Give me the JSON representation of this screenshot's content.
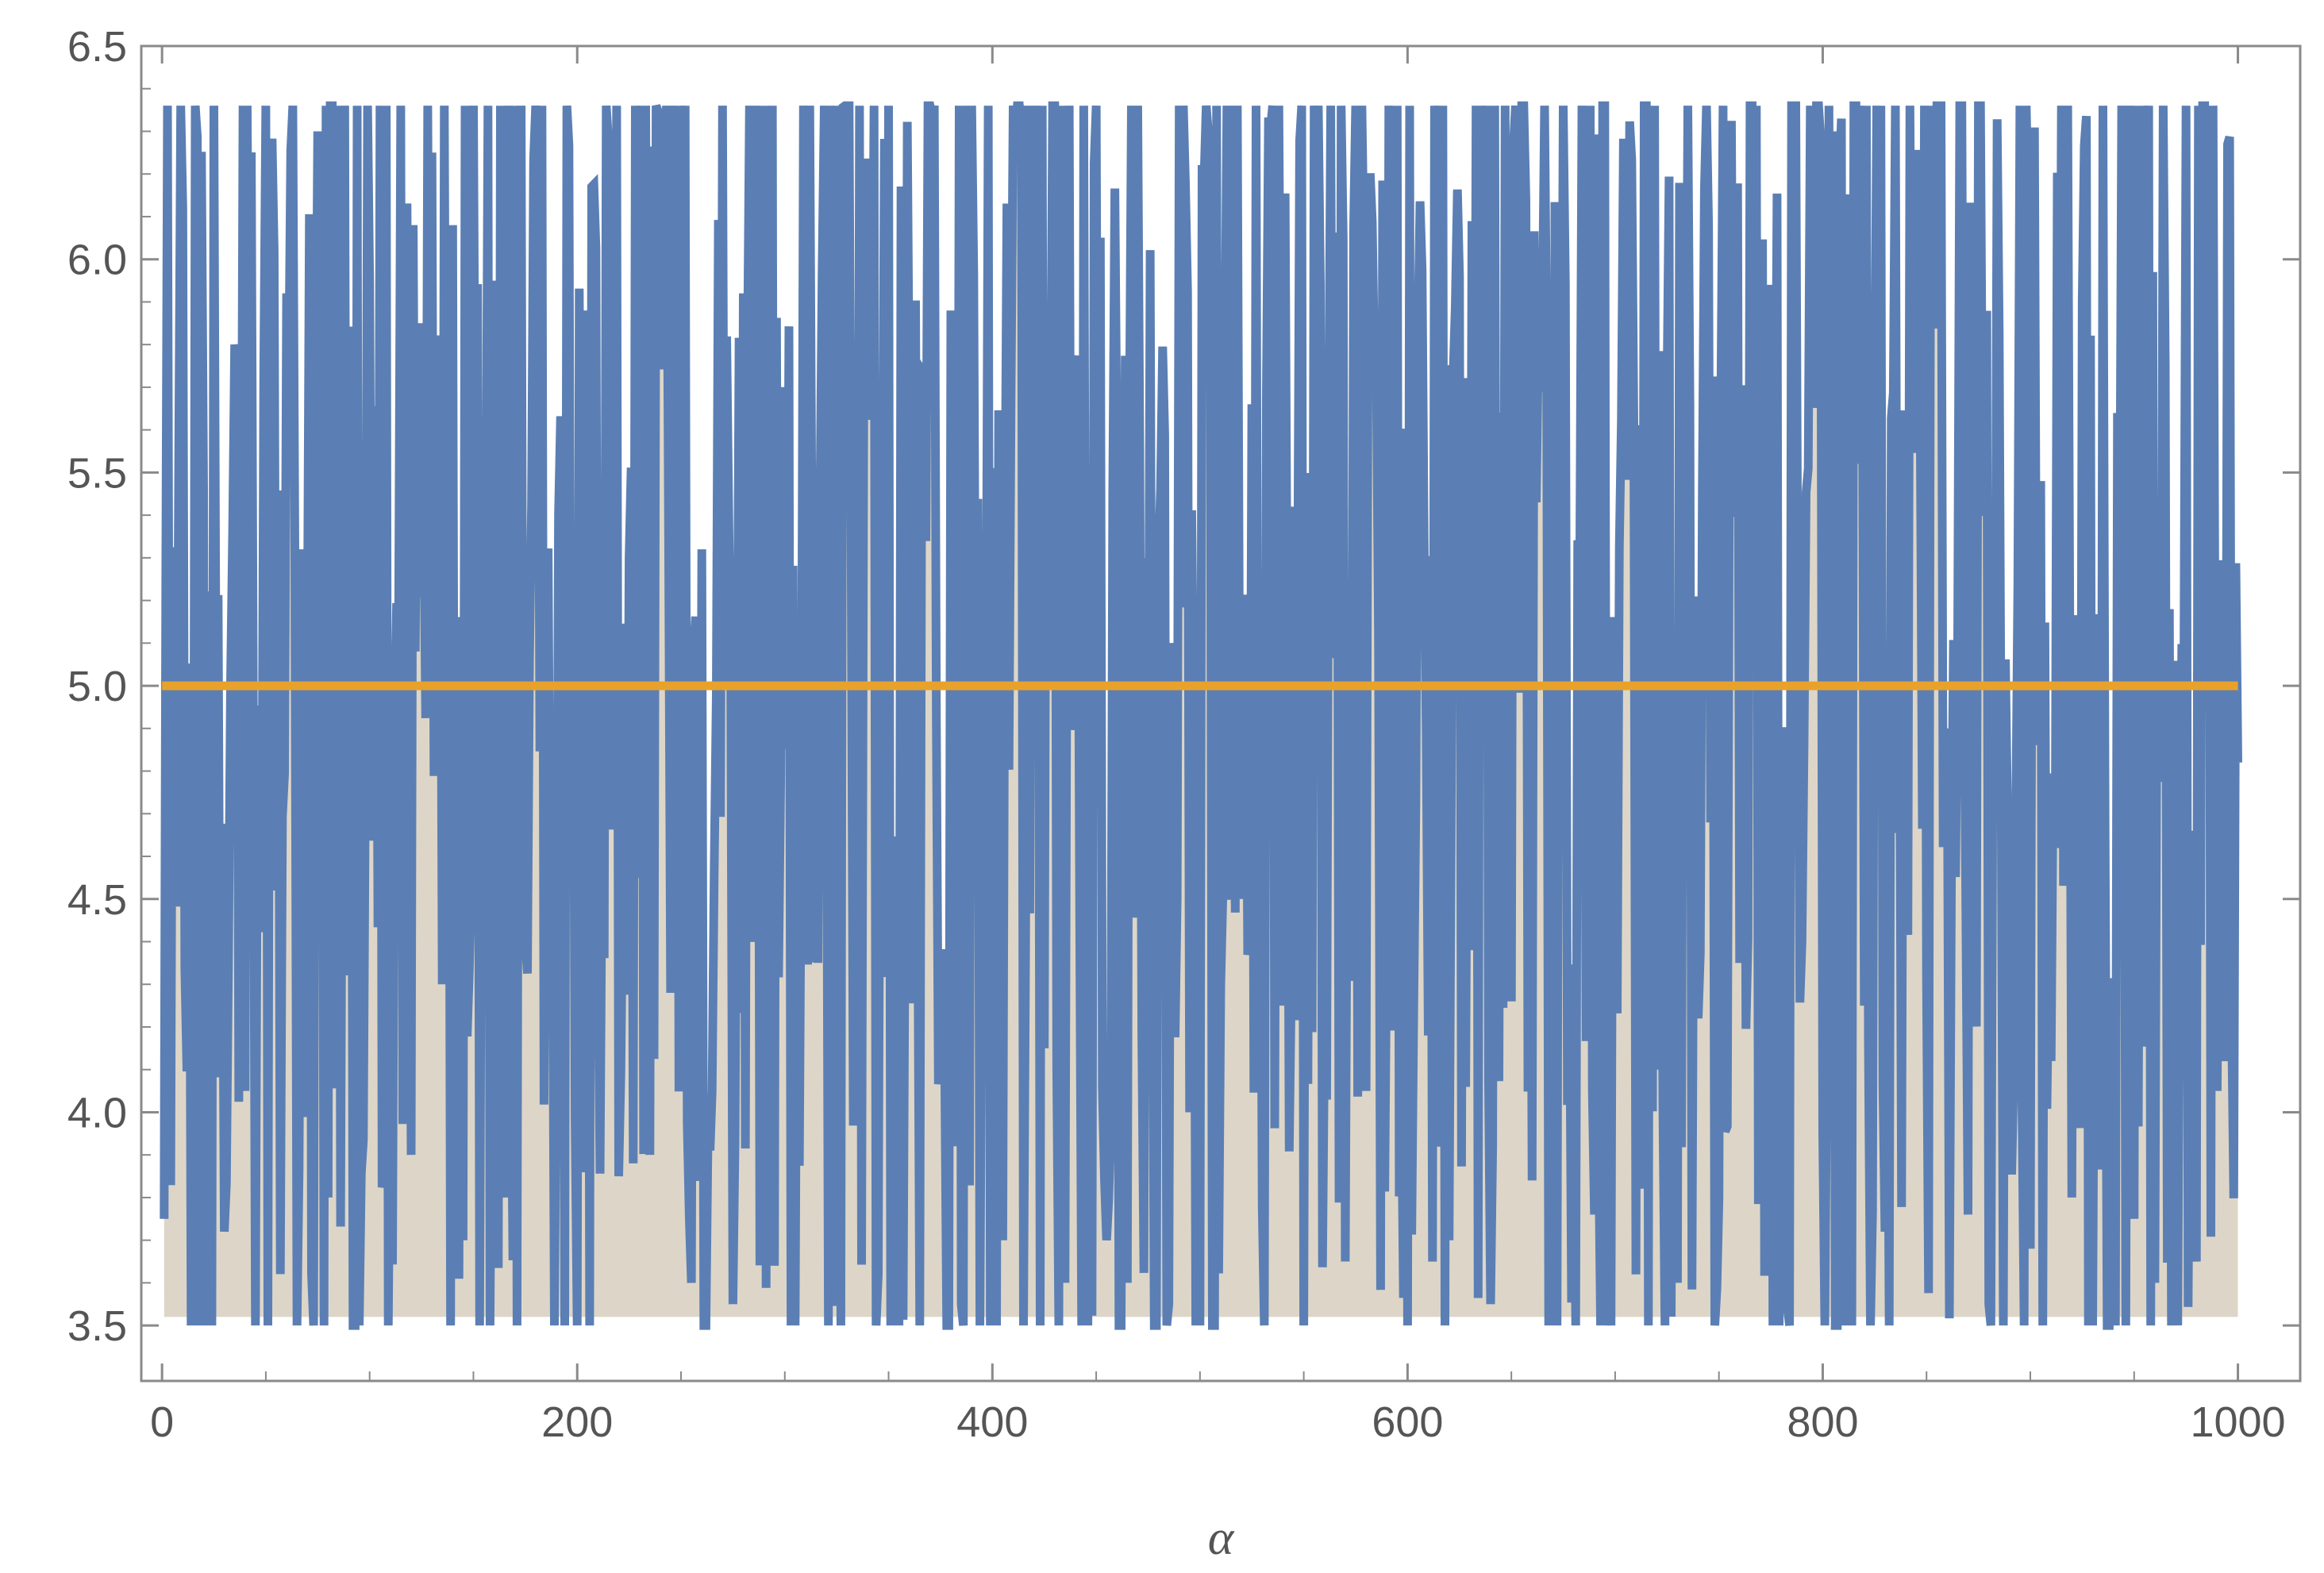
{
  "chart_data": {
    "type": "line",
    "title": "",
    "xlabel": "α",
    "ylabel": "",
    "xlim": [
      -10,
      1030
    ],
    "ylim": [
      3.37,
      6.5
    ],
    "x_ticks": [
      0,
      200,
      400,
      600,
      800,
      1000
    ],
    "x_tick_labels": [
      "0",
      "200",
      "400",
      "600",
      "800",
      "1000"
    ],
    "y_ticks": [
      3.5,
      4.0,
      4.5,
      5.0,
      5.5,
      6.0,
      6.5
    ],
    "y_tick_labels": [
      "3.5",
      "4.0",
      "4.5",
      "5.0",
      "5.5",
      "6.0",
      "6.5"
    ],
    "grid": false,
    "frame": true,
    "series": [
      {
        "style": "jagged line, filled to 3.52",
        "color": "#5b7fb4",
        "fill_color": "#ddd6c8",
        "fill_base": 3.52,
        "x_range": [
          1,
          1000
        ],
        "y_min": 3.5,
        "y_max": 6.36,
        "x": [
          1,
          5,
          10,
          15,
          20,
          25,
          30,
          35,
          40,
          45,
          50,
          55,
          60,
          65,
          70,
          75,
          80,
          85,
          90,
          95,
          100,
          105,
          110,
          115,
          120,
          125,
          130,
          135,
          140,
          145,
          150,
          155,
          160,
          165,
          170,
          175,
          180,
          185,
          190,
          195,
          200,
          205,
          210,
          215,
          220,
          225,
          230,
          235,
          240,
          245,
          250,
          255,
          260,
          265,
          270,
          275,
          280,
          285,
          290,
          295,
          300,
          305,
          310,
          315,
          320,
          325,
          330,
          335,
          340,
          345,
          350,
          355,
          360,
          365,
          370,
          375,
          380,
          385,
          390,
          395,
          400,
          405,
          410,
          415,
          420,
          425,
          430,
          435,
          440,
          445,
          450,
          455,
          460,
          465,
          470,
          475,
          480,
          485,
          490,
          495,
          500,
          505,
          510,
          515,
          520,
          525,
          530,
          535,
          540,
          545,
          550,
          555,
          560,
          565,
          570,
          575,
          580,
          585,
          590,
          595,
          600,
          605,
          610,
          615,
          620,
          625,
          630,
          635,
          640,
          645,
          650,
          655,
          660,
          665,
          670,
          675,
          680,
          685,
          690,
          695,
          700,
          705,
          710,
          715,
          720,
          725,
          730,
          735,
          740,
          745,
          750,
          755,
          760,
          765,
          770,
          775,
          780,
          785,
          790,
          795,
          800,
          805,
          810,
          815,
          820,
          825,
          830,
          835,
          840,
          845,
          850,
          855,
          860,
          865,
          870,
          875,
          880,
          885,
          890,
          895,
          900,
          905,
          910,
          915,
          920,
          925,
          930,
          935,
          940,
          945,
          950,
          955,
          960,
          965,
          970,
          975,
          980,
          985,
          990,
          995,
          1000
        ],
        "y": [
          3.75,
          5.12,
          6.12,
          3.9,
          5.46,
          6.36,
          3.72,
          5.8,
          4.05,
          3.5,
          6.36,
          4.52,
          5.92,
          3.5,
          5.06,
          6.3,
          3.8,
          6.36,
          4.62,
          3.5,
          5.95,
          6.36,
          4.1,
          6.36,
          3.9,
          5.85,
          6.25,
          4.3,
          6.08,
          3.7,
          6.36,
          4.82,
          5.95,
          3.8,
          6.36,
          4.4,
          6.36,
          5.2,
          4.2,
          6.36,
          3.5,
          5.88,
          4.35,
          6.28,
          3.85,
          5.3,
          4.55,
          3.9,
          5.8,
          4.28,
          6.36,
          3.6,
          5.32,
          4.05,
          6.36,
          3.55,
          5.92,
          4.4,
          6.36,
          3.64,
          5.7,
          3.5,
          6.2,
          4.6,
          5.1,
          3.95,
          6.36,
          4.35,
          5.9,
          3.62,
          6.36,
          3.5,
          5.62,
          3.5,
          6.36,
          4.1,
          5.88,
          3.55,
          6.36,
          4.45,
          5.5,
          3.7,
          6.36,
          3.5,
          5.96,
          4.15,
          6.36,
          3.6,
          5.74,
          4.75,
          6.36,
          3.7,
          5.55,
          3.6,
          6.36,
          4.6,
          5.3,
          3.55,
          6.36,
          4.0,
          3.5,
          5.8,
          4.3,
          6.36,
          4.5,
          5.66,
          3.78,
          6.36,
          4.25,
          5.42,
          3.5,
          6.36,
          4.2,
          5.9,
          3.65,
          6.36,
          4.05,
          5.72,
          4.44,
          6.36,
          3.5,
          5.84,
          4.18,
          6.36,
          3.7,
          5.96,
          4.38,
          6.36,
          3.55,
          5.64,
          4.26,
          6.36,
          3.84,
          5.9,
          3.5,
          6.36,
          4.3,
          5.58,
          3.76,
          6.36,
          4.48,
          5.92,
          3.62,
          6.36,
          4.1,
          5.7,
          3.6,
          6.36,
          4.22,
          6.08,
          3.8,
          5.5,
          4.35,
          6.36,
          4.18,
          5.94,
          3.86,
          6.36,
          4.4,
          5.78,
          3.95,
          6.3,
          3.5,
          6.36,
          4.25,
          5.6,
          3.72,
          6.36,
          4.5,
          5.95,
          4.32,
          6.36,
          4.9,
          5.1,
          3.76,
          6.36,
          3.55,
          5.82,
          4.2,
          6.36,
          3.68,
          5.48,
          4.12,
          6.36,
          3.8,
          5.9,
          3.5,
          6.36,
          4.28,
          5.66,
          3.75,
          6.36,
          3.6,
          5.75,
          4.15,
          6.36,
          3.65,
          6.0,
          4.05,
          6.27,
          4.82
        ]
      },
      {
        "style": "horizontal line",
        "color": "#e8a22c",
        "y_constant": 5.0,
        "x_range": [
          0,
          1000
        ]
      }
    ]
  }
}
